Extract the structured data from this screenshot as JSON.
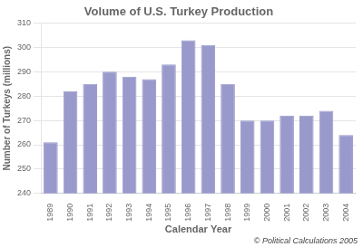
{
  "chart_data": {
    "type": "bar",
    "title": "Volume of U.S. Turkey Production",
    "xlabel": "Calendar Year",
    "ylabel": "Number of Turkeys (millions)",
    "categories": [
      "1989",
      "1990",
      "1991",
      "1992",
      "1993",
      "1994",
      "1995",
      "1996",
      "1997",
      "1998",
      "1999",
      "2000",
      "2001",
      "2002",
      "2003",
      "2004"
    ],
    "values": [
      261,
      282,
      285,
      290,
      288,
      287,
      293,
      303,
      301,
      285,
      270,
      270,
      272,
      272,
      274,
      264
    ],
    "color": "#9999cc",
    "ylim": [
      240,
      310
    ],
    "yticks": [
      240,
      250,
      260,
      270,
      280,
      290,
      300,
      310
    ],
    "grid": true,
    "annotations": [
      "© Political Calculations 2005"
    ]
  }
}
